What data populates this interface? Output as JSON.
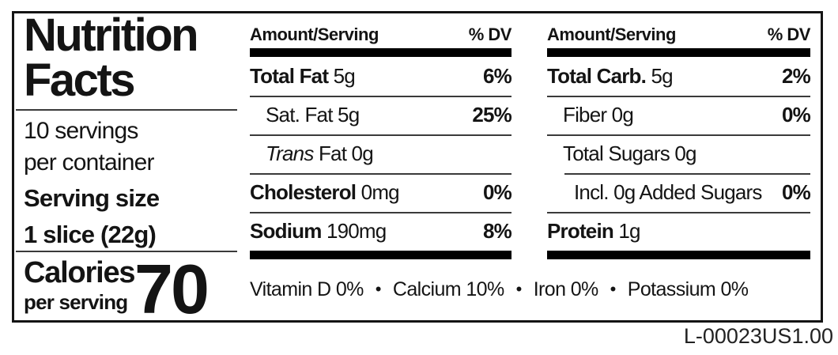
{
  "label": {
    "title_line1": "Nutrition",
    "title_line2": "Facts",
    "servings_line1": "10 servings",
    "servings_line2": "per container",
    "serving_size_label": "Serving size",
    "serving_size_value": "1 slice (22g)",
    "calories_label": "Calories",
    "calories_sub": "per serving",
    "calories_value": "70"
  },
  "columns": [
    {
      "header": {
        "amount": "Amount/Serving",
        "dv": "% DV"
      },
      "rows": [
        {
          "segments": [
            {
              "t": "Total Fat",
              "b": true
            },
            {
              "t": " 5g"
            }
          ],
          "dv": "6%",
          "indent": 0
        },
        {
          "segments": [
            {
              "t": "Sat. Fat 5g"
            }
          ],
          "dv": "25%",
          "indent": 1
        },
        {
          "segments": [
            {
              "t": "Trans",
              "i": true
            },
            {
              "t": " Fat 0g"
            }
          ],
          "dv": "",
          "indent": 1
        },
        {
          "segments": [
            {
              "t": "Cholesterol",
              "b": true
            },
            {
              "t": " 0mg"
            }
          ],
          "dv": "0%",
          "indent": 0
        },
        {
          "segments": [
            {
              "t": "Sodium",
              "b": true
            },
            {
              "t": " 190mg"
            }
          ],
          "dv": "8%",
          "indent": 0
        }
      ]
    },
    {
      "header": {
        "amount": "Amount/Serving",
        "dv": "% DV"
      },
      "rows": [
        {
          "segments": [
            {
              "t": "Total Carb.",
              "b": true
            },
            {
              "t": " 5g"
            }
          ],
          "dv": "2%",
          "indent": 0
        },
        {
          "segments": [
            {
              "t": "Fiber 0g"
            }
          ],
          "dv": "0%",
          "indent": 1
        },
        {
          "segments": [
            {
              "t": "Total Sugars 0g"
            }
          ],
          "dv": "",
          "indent": 1
        },
        {
          "segments": [
            {
              "t": "Incl. 0g Added Sugars"
            }
          ],
          "dv": "0%",
          "indent": 2,
          "rule_indent": true
        },
        {
          "segments": [
            {
              "t": "Protein",
              "b": true
            },
            {
              "t": " 1g"
            }
          ],
          "dv": "",
          "indent": 0
        }
      ]
    }
  ],
  "micronutrients": [
    {
      "name": "Vitamin D",
      "value": "0%"
    },
    {
      "name": "Calcium",
      "value": "10%"
    },
    {
      "name": "Iron",
      "value": "0%"
    },
    {
      "name": "Potassium",
      "value": "0%"
    }
  ],
  "separator": "•",
  "footer_code": "L-00023US1.00",
  "colors": {
    "ink": "#141414",
    "bar": "#000000",
    "background": "#ffffff"
  }
}
